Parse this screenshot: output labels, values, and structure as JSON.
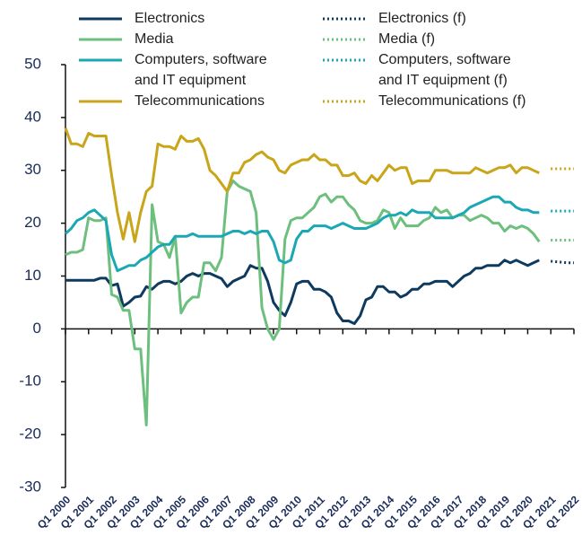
{
  "chart_data": {
    "type": "line",
    "categories": [
      "Q1 2000",
      null,
      null,
      null,
      "Q1 2001",
      null,
      null,
      null,
      "Q1 2002",
      null,
      null,
      null,
      "Q1 2003",
      null,
      null,
      null,
      "Q1 2004",
      null,
      null,
      null,
      "Q1 2005",
      null,
      null,
      null,
      "Q1 2006",
      null,
      null,
      null,
      "Q1 2007",
      null,
      null,
      null,
      "Q1 2008",
      null,
      null,
      null,
      "Q1 2009",
      null,
      null,
      null,
      "Q1 2010",
      null,
      null,
      null,
      "Q1 2011",
      null,
      null,
      null,
      "Q1 2012",
      null,
      null,
      null,
      "Q1 2013",
      null,
      null,
      null,
      "Q1 2014",
      null,
      null,
      null,
      "Q1 2015",
      null,
      null,
      null,
      "Q1 2016",
      null,
      null,
      null,
      "Q1 2017",
      null,
      null,
      null,
      "Q1 2018",
      null,
      null,
      null,
      "Q1 2019",
      null,
      null,
      null,
      "Q1 2020",
      null,
      null,
      null,
      "Q1 2021",
      null,
      null,
      null,
      "Q1 2022"
    ],
    "ylim": [
      -30,
      50
    ],
    "yticks": [
      -30,
      -20,
      -10,
      0,
      10,
      20,
      30,
      40,
      50
    ],
    "series": [
      {
        "name": "Electronics",
        "color": "#0e3a5f",
        "style": "solid",
        "values": [
          9.2,
          9.2,
          9.2,
          9.2,
          9.2,
          9.2,
          9.6,
          9.6,
          8.2,
          8.5,
          4.3,
          5,
          6,
          6.2,
          8,
          7.5,
          8.5,
          9,
          9,
          8.5,
          9,
          10,
          10.5,
          10,
          10.5,
          10.5,
          10,
          9.5,
          8,
          9,
          9.5,
          10,
          12,
          11.5,
          11.5,
          9,
          5,
          3.5,
          2.5,
          5,
          8.5,
          9,
          9,
          7.5,
          7.5,
          7,
          6,
          3,
          1.5,
          1.5,
          1,
          2.5,
          5.5,
          6,
          8,
          8,
          7,
          7,
          6,
          6.5,
          7.5,
          7.5,
          8.5,
          8.5,
          9,
          9,
          9,
          8,
          9,
          10,
          10.5,
          11.5,
          11.5,
          12,
          12,
          12,
          13,
          12.5,
          13,
          12.5,
          12,
          12.5,
          13,
          null,
          null,
          null,
          null,
          null,
          null
        ]
      },
      {
        "name": "Media",
        "color": "#6dbf7d",
        "style": "solid",
        "values": [
          14,
          14.5,
          14.5,
          15,
          21,
          20.5,
          20.5,
          21,
          6.5,
          6,
          3.5,
          3.5,
          -3.8,
          -3.8,
          -18.2,
          23.5,
          16.5,
          16,
          13.5,
          17.5,
          3,
          5,
          6,
          6,
          12.5,
          12.5,
          11,
          13.5,
          26,
          28,
          27,
          26.5,
          26,
          22,
          4,
          0,
          -2,
          0,
          17,
          20.5,
          21,
          21,
          22,
          23,
          25,
          25.5,
          24,
          25,
          25,
          23.5,
          22.5,
          20.5,
          20,
          20,
          20.5,
          22.5,
          22,
          19,
          21,
          19.5,
          19.5,
          19.5,
          20.5,
          21,
          23,
          22,
          22.5,
          21,
          21.5,
          21.5,
          20.5,
          21,
          21.5,
          21,
          20,
          20,
          18.5,
          19.5,
          19,
          19.5,
          19,
          18,
          16.5,
          null,
          null,
          null,
          null,
          null,
          null
        ]
      },
      {
        "name": "Computers, software and IT equipment",
        "color": "#1ba8b5",
        "style": "solid",
        "values": [
          18,
          19,
          20.5,
          21,
          22,
          22.5,
          21.5,
          20.5,
          14,
          11,
          11.5,
          12,
          12,
          13,
          13.5,
          14.5,
          15.5,
          16,
          16,
          17.5,
          17.5,
          17.5,
          18,
          17.5,
          17.5,
          17.5,
          17.5,
          17.5,
          18,
          18.5,
          18.5,
          18,
          18.5,
          18,
          18.5,
          18.5,
          16.5,
          13,
          12.5,
          13,
          17,
          18.5,
          18.5,
          19.5,
          19.5,
          19.5,
          19,
          19.5,
          20,
          19.5,
          19,
          19,
          19,
          19.5,
          20,
          21,
          21.5,
          21.5,
          22,
          21.5,
          22.5,
          22,
          22,
          22,
          21,
          21,
          21,
          21,
          21.5,
          22,
          23,
          23.5,
          24,
          24.5,
          25,
          25,
          24,
          24,
          23,
          22.5,
          22.5,
          22,
          22,
          null,
          null,
          null,
          null,
          null,
          null
        ]
      },
      {
        "name": "Telecommunications",
        "color": "#c9a51a",
        "style": "solid",
        "values": [
          38,
          35,
          35,
          34.5,
          37,
          36.5,
          36.5,
          36.5,
          29,
          22,
          17,
          22,
          16.5,
          22,
          26,
          27,
          35,
          34.5,
          34.5,
          34,
          36.5,
          35.5,
          35.5,
          36,
          34,
          30,
          29,
          27.5,
          26,
          29.5,
          29.5,
          31.5,
          32,
          33,
          33.5,
          32.5,
          32,
          30,
          29.5,
          31,
          31.5,
          32,
          32,
          33,
          32,
          32,
          31,
          31,
          29,
          29,
          29.5,
          28,
          27.5,
          29,
          28,
          29.5,
          31,
          30,
          30.5,
          30.5,
          27.5,
          28,
          28,
          28,
          30,
          30,
          30,
          29.5,
          29.5,
          29.5,
          29.5,
          30.5,
          30,
          29.5,
          30,
          30.5,
          30.5,
          31,
          29.5,
          30.5,
          30.5,
          30,
          29.5,
          null,
          null,
          null,
          null,
          null,
          null
        ]
      },
      {
        "name": "Electronics (f)",
        "color": "#0e3a5f",
        "style": "dotted",
        "values": [
          null,
          null,
          null,
          null,
          null,
          null,
          null,
          null,
          null,
          null,
          null,
          null,
          null,
          null,
          null,
          null,
          null,
          null,
          null,
          null,
          null,
          null,
          null,
          null,
          null,
          null,
          null,
          null,
          null,
          null,
          null,
          null,
          null,
          null,
          null,
          null,
          null,
          null,
          null,
          null,
          null,
          null,
          null,
          null,
          null,
          null,
          null,
          null,
          null,
          null,
          null,
          null,
          null,
          null,
          null,
          null,
          null,
          null,
          null,
          null,
          null,
          null,
          null,
          null,
          null,
          null,
          null,
          null,
          null,
          null,
          null,
          null,
          null,
          null,
          null,
          null,
          null,
          null,
          null,
          null,
          null,
          null,
          null,
          null,
          12.8,
          12.7,
          12.6,
          12.5,
          12.5
        ]
      },
      {
        "name": "Media (f)",
        "color": "#6dbf7d",
        "style": "dotted",
        "values": [
          null,
          null,
          null,
          null,
          null,
          null,
          null,
          null,
          null,
          null,
          null,
          null,
          null,
          null,
          null,
          null,
          null,
          null,
          null,
          null,
          null,
          null,
          null,
          null,
          null,
          null,
          null,
          null,
          null,
          null,
          null,
          null,
          null,
          null,
          null,
          null,
          null,
          null,
          null,
          null,
          null,
          null,
          null,
          null,
          null,
          null,
          null,
          null,
          null,
          null,
          null,
          null,
          null,
          null,
          null,
          null,
          null,
          null,
          null,
          null,
          null,
          null,
          null,
          null,
          null,
          null,
          null,
          null,
          null,
          null,
          null,
          null,
          null,
          null,
          null,
          null,
          null,
          null,
          null,
          null,
          null,
          null,
          null,
          null,
          16.8,
          16.8,
          16.8,
          16.8,
          16.8
        ]
      },
      {
        "name": "Computers, software and IT equipment (f)",
        "color": "#1ba8b5",
        "style": "dotted",
        "values": [
          null,
          null,
          null,
          null,
          null,
          null,
          null,
          null,
          null,
          null,
          null,
          null,
          null,
          null,
          null,
          null,
          null,
          null,
          null,
          null,
          null,
          null,
          null,
          null,
          null,
          null,
          null,
          null,
          null,
          null,
          null,
          null,
          null,
          null,
          null,
          null,
          null,
          null,
          null,
          null,
          null,
          null,
          null,
          null,
          null,
          null,
          null,
          null,
          null,
          null,
          null,
          null,
          null,
          null,
          null,
          null,
          null,
          null,
          null,
          null,
          null,
          null,
          null,
          null,
          null,
          null,
          null,
          null,
          null,
          null,
          null,
          null,
          null,
          null,
          null,
          null,
          null,
          null,
          null,
          null,
          null,
          null,
          null,
          null,
          22.3,
          22.3,
          22.3,
          22.3,
          22.3
        ]
      },
      {
        "name": "Telecommunications (f)",
        "color": "#c9a51a",
        "style": "dotted",
        "values": [
          null,
          null,
          null,
          null,
          null,
          null,
          null,
          null,
          null,
          null,
          null,
          null,
          null,
          null,
          null,
          null,
          null,
          null,
          null,
          null,
          null,
          null,
          null,
          null,
          null,
          null,
          null,
          null,
          null,
          null,
          null,
          null,
          null,
          null,
          null,
          null,
          null,
          null,
          null,
          null,
          null,
          null,
          null,
          null,
          null,
          null,
          null,
          null,
          null,
          null,
          null,
          null,
          null,
          null,
          null,
          null,
          null,
          null,
          null,
          null,
          null,
          null,
          null,
          null,
          null,
          null,
          null,
          null,
          null,
          null,
          null,
          null,
          null,
          null,
          null,
          null,
          null,
          null,
          null,
          null,
          null,
          null,
          null,
          null,
          30.3,
          30.3,
          30.3,
          30.3,
          30.3
        ]
      }
    ]
  }
}
